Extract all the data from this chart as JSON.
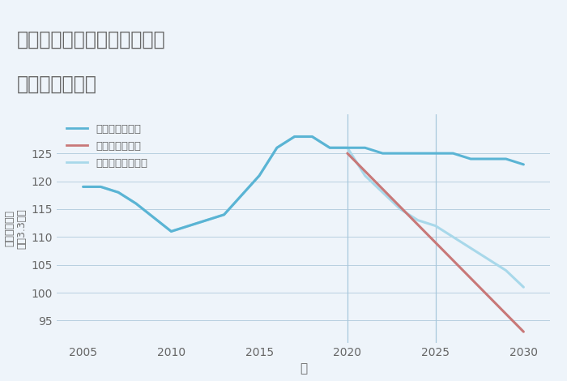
{
  "title_line1": "兵庫県西宮市甲子園七番町の",
  "title_line2": "土地の価格推移",
  "xlabel": "年",
  "ylabel_top": "単価（万円）",
  "ylabel_bottom": "平（3.3㎡）",
  "good_scenario": {
    "label": "グッドシナリオ",
    "x": [
      2005,
      2006,
      2007,
      2008,
      2010,
      2011,
      2012,
      2013,
      2015,
      2016,
      2017,
      2018,
      2019,
      2020,
      2021,
      2022,
      2023,
      2024,
      2025,
      2026,
      2027,
      2028,
      2029,
      2030
    ],
    "y": [
      119,
      119,
      118,
      116,
      111,
      112,
      113,
      114,
      121,
      126,
      128,
      128,
      126,
      126,
      126,
      125,
      125,
      125,
      125,
      125,
      124,
      124,
      124,
      123
    ],
    "color": "#5ab4d4",
    "linewidth": 2.2
  },
  "bad_scenario": {
    "label": "バッドシナリオ",
    "x": [
      2020,
      2025,
      2030
    ],
    "y": [
      125,
      109,
      93
    ],
    "color": "#c87878",
    "linewidth": 2.2
  },
  "normal_scenario": {
    "label": "ノーマルシナリオ",
    "x": [
      2005,
      2006,
      2007,
      2008,
      2010,
      2011,
      2012,
      2013,
      2015,
      2016,
      2017,
      2018,
      2019,
      2020,
      2021,
      2022,
      2023,
      2024,
      2025,
      2026,
      2027,
      2028,
      2029,
      2030
    ],
    "y": [
      119,
      119,
      118,
      116,
      111,
      112,
      113,
      114,
      121,
      126,
      128,
      128,
      126,
      126,
      121,
      118,
      115,
      113,
      112,
      110,
      108,
      106,
      104,
      101
    ],
    "color": "#a8d8ea",
    "linewidth": 2.2
  },
  "ylim": [
    91,
    132
  ],
  "yticks": [
    95,
    100,
    105,
    110,
    115,
    120,
    125
  ],
  "xlim": [
    2003.5,
    2031.5
  ],
  "xticks": [
    2005,
    2010,
    2015,
    2020,
    2025,
    2030
  ],
  "title_bg_color": "#ffffff",
  "plot_bg_color": "#eef4fa",
  "fig_bg_color": "#eef4fa",
  "grid_color": "#b8cfe0",
  "title_color": "#666666",
  "tick_color": "#666666",
  "label_color": "#666666",
  "vline_x": [
    2020,
    2025
  ],
  "vline_color": "#a8c8dc",
  "legend_colors": [
    "#5ab4d4",
    "#c87878",
    "#a8d8ea"
  ]
}
